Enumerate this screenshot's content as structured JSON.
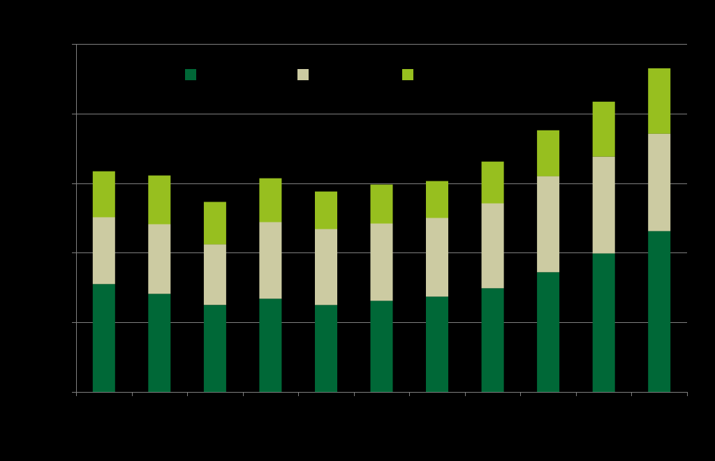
{
  "chart_data": {
    "type": "bar",
    "stacked": true,
    "categories": [
      "",
      "",
      "",
      "",
      "",
      "",
      "",
      "",
      "",
      "",
      ""
    ],
    "series": [
      {
        "color": "#006837",
        "values": [
          1.55,
          1.41,
          1.25,
          1.34,
          1.25,
          1.31,
          1.37,
          1.49,
          1.72,
          1.99,
          2.31
        ]
      },
      {
        "color": "#CCCBA2",
        "values": [
          0.96,
          1.0,
          0.87,
          1.1,
          1.09,
          1.11,
          1.13,
          1.22,
          1.38,
          1.39,
          1.4
        ]
      },
      {
        "color": "#97BF1F",
        "values": [
          0.66,
          0.7,
          0.61,
          0.63,
          0.54,
          0.56,
          0.53,
          0.6,
          0.66,
          0.79,
          0.94
        ]
      }
    ],
    "ylim": [
      0,
      5
    ],
    "y_gridlines": [
      1,
      2,
      3,
      4,
      5
    ],
    "grid": true,
    "legend_position": "top",
    "background": "#000000",
    "axis_color": "#808080",
    "title": "",
    "xlabel": "",
    "ylabel": ""
  }
}
